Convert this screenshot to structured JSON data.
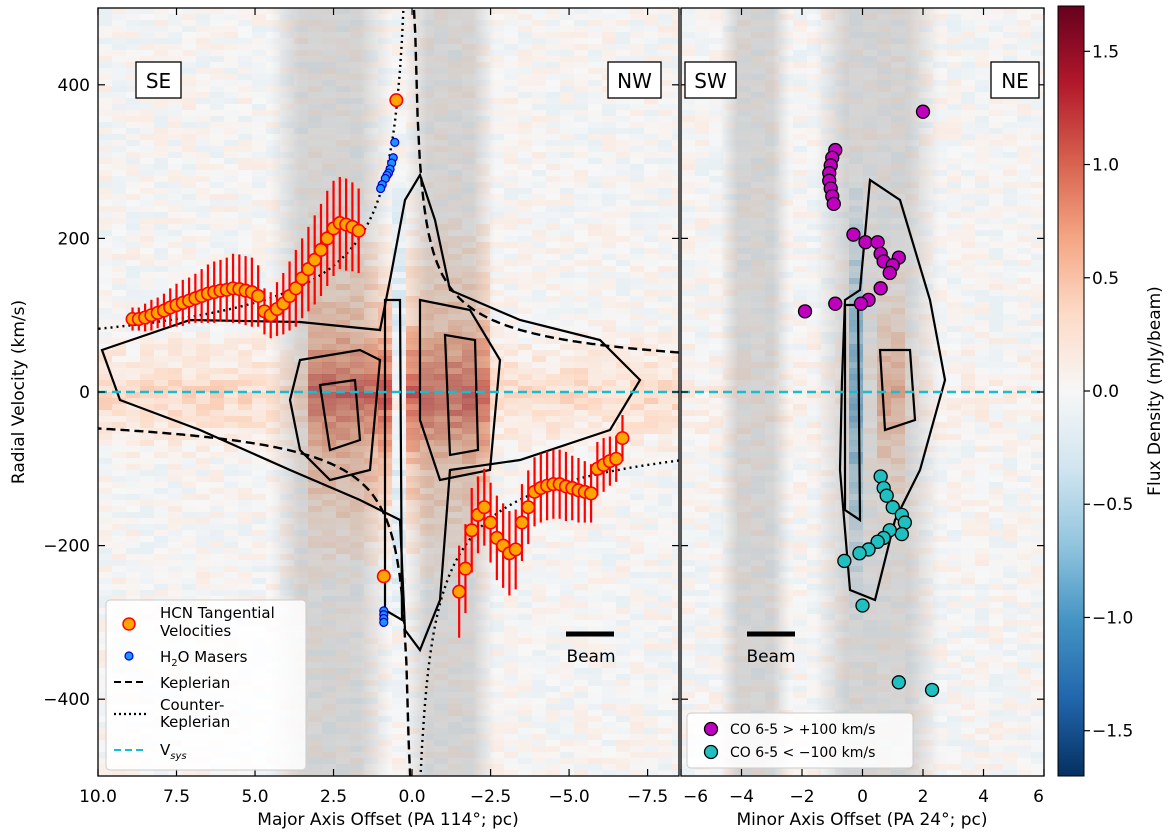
{
  "chart_data": [
    {
      "type": "scatter",
      "panel": "major-axis position-velocity diagram",
      "xlabel": "Major Axis Offset (PA 114°; pc)",
      "ylabel": "Radial Velocity (km/s)",
      "xlim": [
        10.0,
        -8.5
      ],
      "ylim": [
        -500,
        500
      ],
      "xticks": [
        "10.0",
        "7.5",
        "5.0",
        "2.5",
        "0.0",
        "−2.5",
        "−5.0",
        "−7.5"
      ],
      "xtick_values": [
        10,
        7.5,
        5,
        2.5,
        0,
        -2.5,
        -5,
        -7.5
      ],
      "yticks": [
        "−400",
        "−200",
        "0",
        "200",
        "400"
      ],
      "ytick_values": [
        -400,
        -200,
        0,
        200,
        400
      ],
      "corner_labels": {
        "left": "SE",
        "right": "NW"
      },
      "beam_label": "Beam",
      "series": [
        {
          "name": "HCN Tangential Velocities",
          "color": "#ffa500",
          "edge": "#ff0000",
          "x": [
            8.9,
            8.7,
            8.5,
            8.3,
            8.1,
            7.9,
            7.7,
            7.5,
            7.3,
            7.1,
            6.9,
            6.7,
            6.5,
            6.3,
            6.1,
            5.9,
            5.7,
            5.5,
            5.3,
            5.1,
            4.9,
            4.7,
            4.5,
            4.3,
            4.1,
            3.9,
            3.7,
            3.5,
            3.3,
            3.1,
            2.9,
            2.7,
            2.5,
            2.3,
            2.1,
            1.9,
            1.7,
            0.9,
            0.5,
            -1.5,
            -1.7,
            -1.9,
            -2.1,
            -2.3,
            -2.5,
            -2.7,
            -2.9,
            -3.1,
            -3.3,
            -3.5,
            -3.7,
            -3.9,
            -4.1,
            -4.3,
            -4.5,
            -4.7,
            -4.9,
            -5.1,
            -5.3,
            -5.5,
            -5.7,
            -5.9,
            -6.1,
            -6.3,
            -6.5,
            -6.7
          ],
          "y": [
            95,
            95,
            97,
            100,
            103,
            106,
            110,
            113,
            116,
            119,
            122,
            125,
            128,
            130,
            132,
            133,
            135,
            134,
            132,
            130,
            125,
            105,
            100,
            108,
            115,
            125,
            135,
            148,
            160,
            172,
            185,
            200,
            213,
            220,
            218,
            215,
            210,
            -240,
            380,
            -260,
            -230,
            -180,
            -160,
            -150,
            -170,
            -190,
            -200,
            -210,
            -205,
            -170,
            -150,
            -130,
            -125,
            -122,
            -120,
            -120,
            -123,
            -125,
            -128,
            -130,
            -132,
            -100,
            -95,
            -90,
            -87,
            -60
          ],
          "yerr": [
            15,
            15,
            18,
            20,
            20,
            22,
            25,
            28,
            30,
            30,
            32,
            35,
            38,
            40,
            40,
            42,
            45,
            45,
            45,
            45,
            40,
            30,
            30,
            35,
            40,
            45,
            50,
            52,
            55,
            58,
            60,
            62,
            62,
            60,
            60,
            58,
            55,
            0,
            0,
            60,
            58,
            55,
            50,
            50,
            52,
            55,
            55,
            55,
            52,
            50,
            48,
            45,
            45,
            45,
            45,
            45,
            45,
            42,
            42,
            40,
            38,
            35,
            35,
            32,
            30,
            30
          ]
        },
        {
          "name": "H2O Masers",
          "color": "#1e90ff",
          "edge": "#0000cd",
          "x": [
            0.55,
            0.6,
            0.65,
            0.7,
            0.75,
            0.8,
            0.85,
            0.95,
            1.0,
            0.9,
            0.9,
            0.9,
            0.9
          ],
          "y": [
            325,
            305,
            298,
            290,
            285,
            282,
            278,
            270,
            265,
            -285,
            -290,
            -295,
            -300
          ]
        },
        {
          "name": "Keplerian",
          "style": "dashed",
          "formula": "v = ±k/sqrt(|x|), positive for x<0, negative for x>0, k≈150"
        },
        {
          "name": "Counter-Keplerian",
          "style": "dotted",
          "formula": "v = ±k/sqrt(|x|), positive for x>0, negative for x<0, k≈260"
        },
        {
          "name": "V_sys",
          "style": "dashed",
          "color": "#17becf",
          "y": 0
        }
      ],
      "contour_levels": 5,
      "colormap": "RdBu_r"
    },
    {
      "type": "scatter",
      "panel": "minor-axis position-velocity diagram",
      "xlabel": "Minor Axis Offset (PA 24°; pc)",
      "xlim": [
        -6,
        6
      ],
      "ylim": [
        -500,
        500
      ],
      "xticks": [
        "−6",
        "−4",
        "−2",
        "0",
        "2",
        "4",
        "6"
      ],
      "xtick_values": [
        -6,
        -4,
        -2,
        0,
        2,
        4,
        6
      ],
      "corner_labels": {
        "left": "SW",
        "right": "NE"
      },
      "beam_label": "Beam",
      "series": [
        {
          "name": "CO 6-5 > +100 km/s",
          "color": "#bf00bf",
          "x": [
            -0.9,
            -1.0,
            -1.05,
            -1.1,
            -1.1,
            -1.05,
            -1.0,
            -0.95,
            -0.3,
            0.1,
            0.5,
            0.6,
            0.7,
            1.2,
            1.0,
            0.9,
            0.6,
            0.2,
            -0.05,
            -0.9,
            -1.9,
            2.0
          ],
          "y": [
            315,
            305,
            295,
            285,
            275,
            265,
            255,
            245,
            205,
            195,
            195,
            180,
            170,
            175,
            165,
            155,
            135,
            120,
            115,
            115,
            105,
            365
          ]
        },
        {
          "name": "CO 6-5 < −100 km/s",
          "color": "#20c0c0",
          "x": [
            0.6,
            0.7,
            0.8,
            1.0,
            1.3,
            1.4,
            1.3,
            0.9,
            0.7,
            0.5,
            0.2,
            -0.1,
            -0.6,
            0.0,
            1.2,
            2.3
          ],
          "y": [
            -110,
            -125,
            -135,
            -150,
            -160,
            -170,
            -185,
            -180,
            -190,
            -195,
            -205,
            -210,
            -220,
            -278,
            -378,
            -388
          ]
        }
      ]
    }
  ],
  "legend_left": {
    "items": [
      "HCN Tangential",
      "Velocities",
      "H",
      "2",
      "O Masers",
      "Keplerian",
      "Counter-",
      "Keplerian",
      "V",
      "sys"
    ]
  },
  "legend_right": {
    "items": [
      "CO 6-5  > +100 km/s",
      "CO 6-5  < −100 km/s"
    ]
  },
  "colorbar": {
    "label": "Flux Density (mJy/beam)",
    "range": [
      -1.7,
      1.7
    ],
    "ticks": [
      "1.5",
      "1.0",
      "0.5",
      "0.0",
      "−0.5",
      "−1.0",
      "−1.5"
    ],
    "tick_values": [
      1.5,
      1.0,
      0.5,
      0.0,
      -0.5,
      -1.0,
      -1.5
    ],
    "colormap_stops": [
      "#053061",
      "#2166ac",
      "#4393c3",
      "#92c5de",
      "#d1e5f0",
      "#f7f7f7",
      "#fddbc7",
      "#f4a582",
      "#d6604d",
      "#b2182b",
      "#67001f"
    ]
  }
}
